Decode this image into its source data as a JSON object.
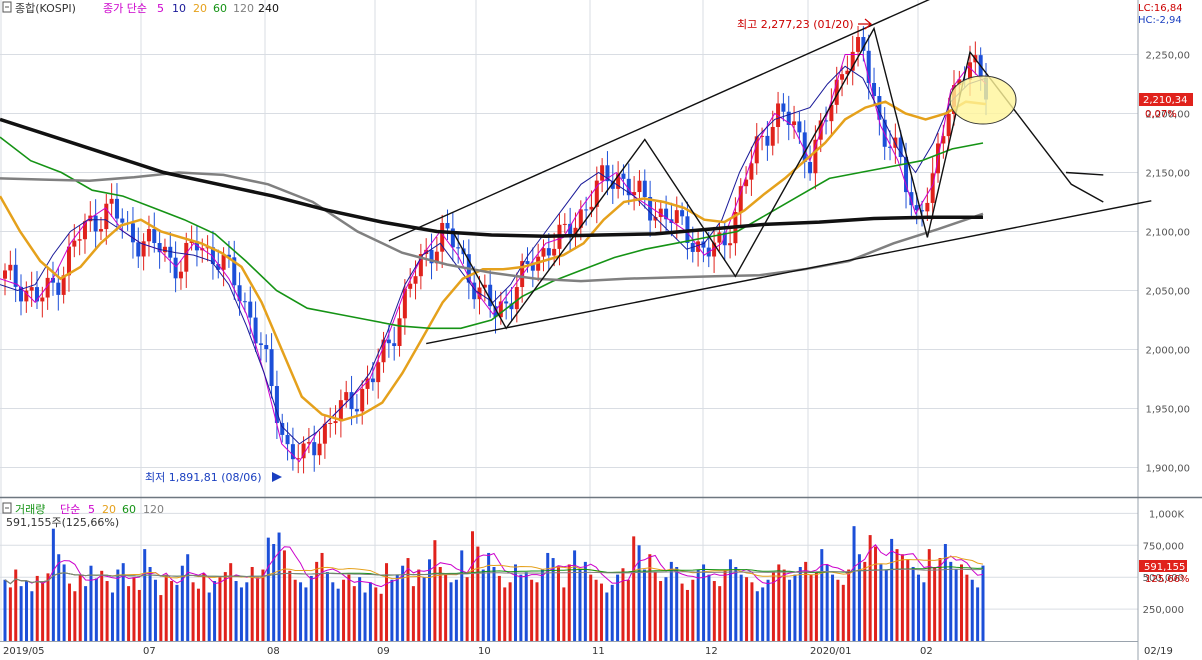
{
  "header": {
    "title": "종합(KOSPI)",
    "ma_legend_label": "종가 단순",
    "periods": [
      "5",
      "10",
      "20",
      "60",
      "120",
      "240"
    ],
    "colors": [
      "#cc00cc",
      "#1a1a99",
      "#e5a11c",
      "#159315",
      "#808080",
      "#111111"
    ]
  },
  "lc_hc": {
    "lc": "LC:16,84",
    "hc": "HC:-2,94"
  },
  "price_tag": {
    "value": "2,210,34",
    "change": "0,07%"
  },
  "annotations": {
    "high": "최고 2,277,23 (01/20)",
    "low": "최저 1,891,81 (08/06)"
  },
  "volume_header": {
    "title": "거래량",
    "ma_label": "단순",
    "periods": [
      "5",
      "20",
      "60",
      "120"
    ],
    "colors": [
      "#cc00cc",
      "#e5a11c",
      "#159315",
      "#808080"
    ],
    "current": "591,155주(125,66%)"
  },
  "volume_tag": {
    "value": "591,155",
    "ratio": "125,66%"
  },
  "colors": {
    "up": "#e0221c",
    "down": "#1c4fd8",
    "label_red": "#cc0000",
    "label_blue": "#1a3fc0",
    "grid": "#d9dde3",
    "highlight": "#fff59a"
  },
  "chart_data": [
    {
      "type": "candlestick",
      "title": "종합(KOSPI)",
      "x_ticks": [
        "2019/05",
        "07",
        "08",
        "09",
        "10",
        "11",
        "12",
        "2020/01",
        "02",
        "02/19"
      ],
      "y_ticks": [
        "2,250,00",
        "2,200,00",
        "2,150,00",
        "2,100,00",
        "2,050,00",
        "2,000,00",
        "1,950,00",
        "1,900,00"
      ],
      "ylim": [
        1880,
        2300
      ],
      "grid": true,
      "series_moving_averages": [
        {
          "name": "5",
          "values": [
            2060,
            2055,
            2040,
            2060,
            2090,
            2110,
            2120,
            2100,
            2090,
            2085,
            2070,
            2090,
            2080,
            2060,
            2030,
            1980,
            1920,
            1905,
            1930,
            1945,
            1960,
            1975,
            2010,
            2050,
            2080,
            2100,
            2080,
            2050,
            2030,
            2050,
            2070,
            2090,
            2095,
            2120,
            2140,
            2150,
            2130,
            2120,
            2110,
            2100,
            2080,
            2090,
            2130,
            2175,
            2200,
            2190,
            2160,
            2200,
            2250,
            2250,
            2190,
            2160,
            2115,
            2140,
            2220,
            2240,
            2225
          ]
        },
        {
          "name": "10",
          "values": [
            2055,
            2050,
            2055,
            2080,
            2100,
            2110,
            2110,
            2100,
            2090,
            2085,
            2082,
            2080,
            2075,
            2055,
            2020,
            1980,
            1935,
            1920,
            1930,
            1945,
            1960,
            1980,
            2015,
            2055,
            2080,
            2090,
            2070,
            2050,
            2040,
            2055,
            2080,
            2100,
            2120,
            2140,
            2150,
            2140,
            2130,
            2115,
            2100,
            2085,
            2090,
            2110,
            2150,
            2180,
            2195,
            2200,
            2205,
            2225,
            2240,
            2230,
            2200,
            2170,
            2150,
            2175,
            2210,
            2225,
            2230
          ]
        },
        {
          "name": "20",
          "values": [
            2130,
            2100,
            2075,
            2060,
            2070,
            2090,
            2105,
            2110,
            2100,
            2095,
            2090,
            2082,
            2070,
            2040,
            2000,
            1960,
            1945,
            1940,
            1945,
            1955,
            1980,
            2010,
            2040,
            2060,
            2068,
            2068,
            2070,
            2075,
            2080,
            2090,
            2110,
            2125,
            2128,
            2125,
            2120,
            2110,
            2108,
            2118,
            2132,
            2145,
            2160,
            2175,
            2195,
            2205,
            2210,
            2200,
            2195,
            2200,
            2210,
            2208
          ]
        },
        {
          "name": "60",
          "values": [
            2180,
            2160,
            2150,
            2135,
            2130,
            2120,
            2110,
            2098,
            2075,
            2050,
            2035,
            2030,
            2025,
            2020,
            2018,
            2018,
            2025,
            2045,
            2058,
            2068,
            2078,
            2085,
            2090,
            2095,
            2100,
            2115,
            2130,
            2145,
            2150,
            2155,
            2160,
            2170,
            2175
          ]
        },
        {
          "name": "120",
          "values": [
            2145,
            2144,
            2143,
            2146,
            2150,
            2148,
            2140,
            2125,
            2100,
            2082,
            2072,
            2065,
            2060,
            2058,
            2060,
            2061,
            2062,
            2063,
            2068,
            2075,
            2090,
            2102,
            2115
          ]
        },
        {
          "name": "240",
          "values": [
            2195,
            2180,
            2165,
            2150,
            2140,
            2130,
            2118,
            2108,
            2100,
            2097,
            2096,
            2097,
            2098,
            2102,
            2106,
            2108,
            2111,
            2112,
            2112
          ]
        }
      ],
      "trend_lines": [
        "channel-upper",
        "channel-lower",
        "zigzag",
        "forecast-arrow"
      ],
      "annotations": [
        "최고 2,277,23 (01/20)",
        "최저 1,891,81 (08/06)"
      ]
    },
    {
      "type": "bar",
      "title": "거래량",
      "y_ticks": [
        "1,000K",
        "750,000",
        "500,000",
        "250,000"
      ],
      "ylim": [
        0,
        1100000
      ],
      "grid": true,
      "values_thousands": [
        480,
        420,
        560,
        430,
        470,
        390,
        510,
        460,
        530,
        880,
        680,
        600,
        450,
        390,
        520,
        430,
        590,
        490,
        550,
        470,
        380,
        560,
        610,
        430,
        500,
        400,
        720,
        580,
        480,
        360,
        520,
        470,
        440,
        590,
        680,
        460,
        410,
        530,
        380,
        470,
        500,
        540,
        610,
        470,
        420,
        460,
        580,
        500,
        560,
        810,
        760,
        850,
        710,
        550,
        480,
        460,
        420,
        510,
        620,
        690,
        540,
        460,
        410,
        480,
        520,
        430,
        500,
        380,
        460,
        420,
        370,
        610,
        480,
        520,
        590,
        650,
        430,
        560,
        500,
        640,
        790,
        580,
        520,
        460,
        480,
        710,
        500,
        860,
        740,
        560,
        690,
        580,
        510,
        420,
        460,
        600,
        520,
        540,
        480,
        460,
        560,
        690,
        650,
        590,
        420,
        600,
        710,
        560,
        620,
        520,
        480,
        450,
        380,
        440,
        520,
        570,
        480,
        820,
        750,
        560,
        680,
        540,
        470,
        500,
        620,
        580,
        450,
        400,
        480,
        560,
        600,
        520,
        470,
        430,
        560,
        640,
        580,
        520,
        500,
        460,
        390,
        420,
        480,
        540,
        600,
        560,
        480,
        520,
        580,
        620,
        520,
        540,
        720,
        600,
        520,
        480,
        440,
        560,
        900,
        680,
        620,
        830,
        740,
        600,
        560,
        800,
        720,
        680,
        640,
        580,
        520,
        460,
        720,
        580,
        650,
        760,
        620,
        560,
        600,
        520,
        480,
        420,
        591
      ]
    }
  ]
}
